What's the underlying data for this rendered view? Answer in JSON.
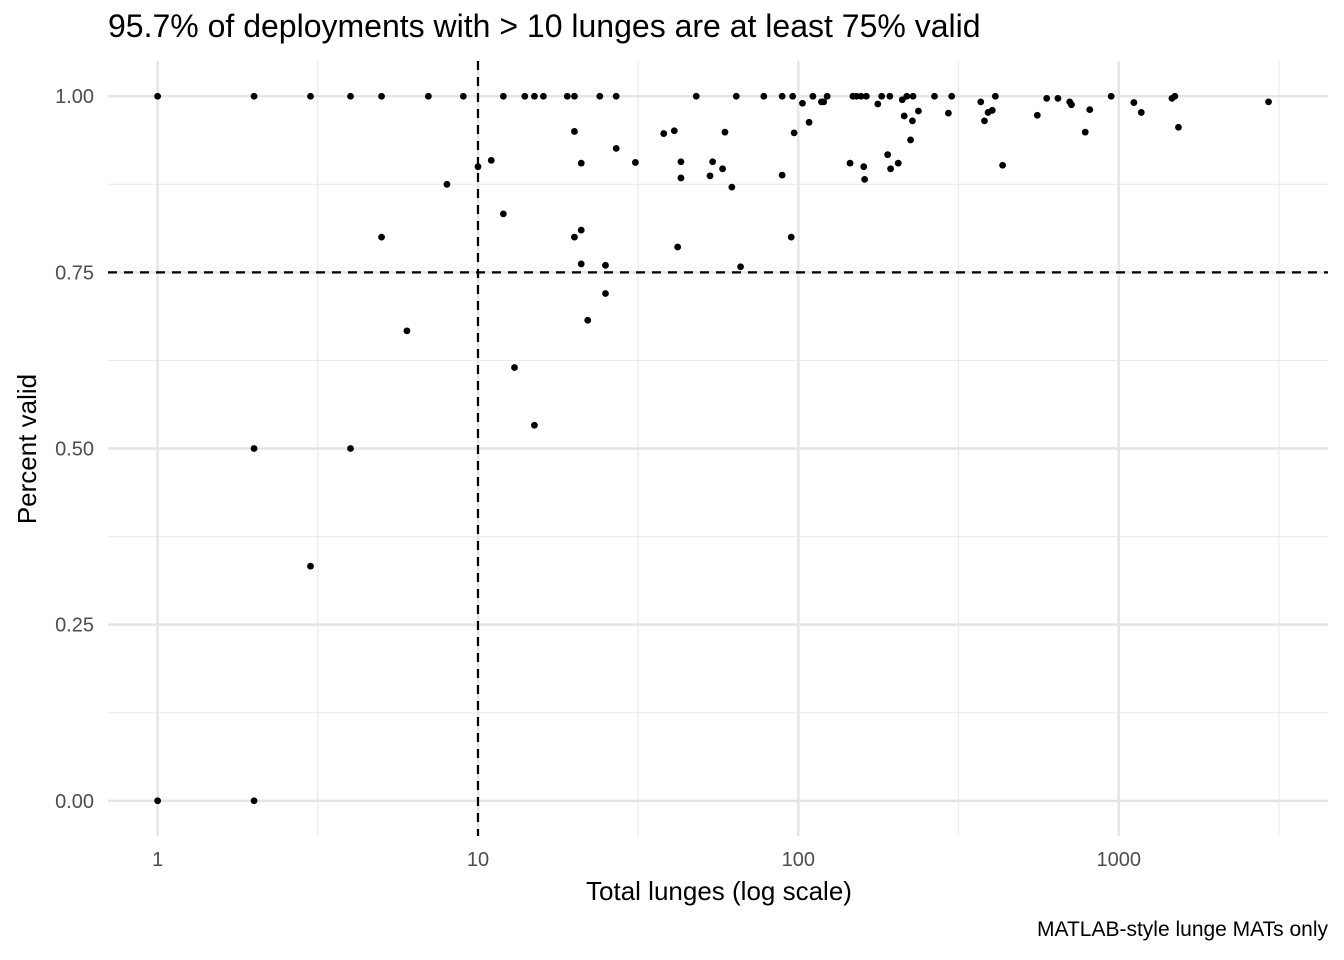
{
  "chart_data": {
    "type": "scatter",
    "title": "95.7% of deployments with > 10 lunges are at least 75% valid",
    "caption": "MATLAB-style lunge MATs only",
    "xlabel": "Total lunges (log scale)",
    "ylabel": "Percent valid",
    "x_scale": "log10",
    "xlim": [
      0.7,
      4500
    ],
    "ylim": [
      -0.05,
      1.05
    ],
    "x_ticks": [
      1,
      10,
      100,
      1000
    ],
    "x_tick_labels": [
      "1",
      "10",
      "100",
      "1000"
    ],
    "y_ticks": [
      0,
      0.25,
      0.5,
      0.75,
      1
    ],
    "y_tick_labels": [
      "0.00",
      "0.25",
      "0.50",
      "0.75",
      "1.00"
    ],
    "grid": true,
    "reference_lines": [
      {
        "orientation": "vertical",
        "value": 10,
        "style": "dashed"
      },
      {
        "orientation": "horizontal",
        "value": 0.75,
        "style": "dashed"
      }
    ],
    "points": [
      {
        "x": 1,
        "y": 1.0
      },
      {
        "x": 1,
        "y": 0.0
      },
      {
        "x": 2,
        "y": 1.0
      },
      {
        "x": 2,
        "y": 0.5
      },
      {
        "x": 2,
        "y": 0.0
      },
      {
        "x": 3,
        "y": 1.0
      },
      {
        "x": 3,
        "y": 0.333
      },
      {
        "x": 4,
        "y": 1.0
      },
      {
        "x": 4,
        "y": 0.5
      },
      {
        "x": 5,
        "y": 1.0
      },
      {
        "x": 5,
        "y": 0.8
      },
      {
        "x": 6,
        "y": 0.667
      },
      {
        "x": 7,
        "y": 1.0
      },
      {
        "x": 8,
        "y": 0.875
      },
      {
        "x": 9,
        "y": 1.0
      },
      {
        "x": 10,
        "y": 0.9
      },
      {
        "x": 11,
        "y": 0.909
      },
      {
        "x": 12,
        "y": 1.0
      },
      {
        "x": 12,
        "y": 0.833
      },
      {
        "x": 13,
        "y": 0.615
      },
      {
        "x": 14,
        "y": 1.0
      },
      {
        "x": 15,
        "y": 1.0
      },
      {
        "x": 15,
        "y": 0.533
      },
      {
        "x": 16,
        "y": 1.0
      },
      {
        "x": 19,
        "y": 1.0
      },
      {
        "x": 20,
        "y": 1.0
      },
      {
        "x": 20,
        "y": 0.95
      },
      {
        "x": 20,
        "y": 0.8
      },
      {
        "x": 21,
        "y": 0.905
      },
      {
        "x": 21,
        "y": 0.81
      },
      {
        "x": 21,
        "y": 0.762
      },
      {
        "x": 22,
        "y": 0.682
      },
      {
        "x": 24,
        "y": 1.0
      },
      {
        "x": 25,
        "y": 0.76
      },
      {
        "x": 25,
        "y": 0.72
      },
      {
        "x": 27,
        "y": 1.0
      },
      {
        "x": 27,
        "y": 0.926
      },
      {
        "x": 31,
        "y": 0.906
      },
      {
        "x": 38,
        "y": 0.947
      },
      {
        "x": 41,
        "y": 0.951
      },
      {
        "x": 42,
        "y": 0.786
      },
      {
        "x": 43,
        "y": 0.907
      },
      {
        "x": 43,
        "y": 0.884
      },
      {
        "x": 48,
        "y": 1.0
      },
      {
        "x": 53,
        "y": 0.887
      },
      {
        "x": 54,
        "y": 0.907
      },
      {
        "x": 58,
        "y": 0.897
      },
      {
        "x": 59,
        "y": 0.949
      },
      {
        "x": 62,
        "y": 0.871
      },
      {
        "x": 64,
        "y": 1.0
      },
      {
        "x": 66,
        "y": 0.758
      },
      {
        "x": 78,
        "y": 1.0
      },
      {
        "x": 89,
        "y": 1.0
      },
      {
        "x": 89,
        "y": 0.888
      },
      {
        "x": 95,
        "y": 0.8
      },
      {
        "x": 96,
        "y": 1.0
      },
      {
        "x": 97,
        "y": 0.948
      },
      {
        "x": 103,
        "y": 0.99
      },
      {
        "x": 108,
        "y": 0.963
      },
      {
        "x": 111,
        "y": 1.0
      },
      {
        "x": 118,
        "y": 0.992
      },
      {
        "x": 120,
        "y": 0.992
      },
      {
        "x": 123,
        "y": 1.0
      },
      {
        "x": 145,
        "y": 0.905
      },
      {
        "x": 148,
        "y": 1.0
      },
      {
        "x": 152,
        "y": 1.0
      },
      {
        "x": 157,
        "y": 1.0
      },
      {
        "x": 160,
        "y": 0.9
      },
      {
        "x": 161,
        "y": 0.882
      },
      {
        "x": 163,
        "y": 1.0
      },
      {
        "x": 177,
        "y": 0.989
      },
      {
        "x": 182,
        "y": 1.0
      },
      {
        "x": 190,
        "y": 0.917
      },
      {
        "x": 193,
        "y": 1.0
      },
      {
        "x": 194,
        "y": 0.897
      },
      {
        "x": 205,
        "y": 0.905
      },
      {
        "x": 211,
        "y": 0.995
      },
      {
        "x": 214,
        "y": 0.972
      },
      {
        "x": 218,
        "y": 1.0
      },
      {
        "x": 224,
        "y": 0.938
      },
      {
        "x": 227,
        "y": 0.965
      },
      {
        "x": 228,
        "y": 1.0
      },
      {
        "x": 237,
        "y": 0.979
      },
      {
        "x": 266,
        "y": 1.0
      },
      {
        "x": 294,
        "y": 0.976
      },
      {
        "x": 301,
        "y": 1.0
      },
      {
        "x": 371,
        "y": 0.992
      },
      {
        "x": 381,
        "y": 0.965
      },
      {
        "x": 391,
        "y": 0.977
      },
      {
        "x": 403,
        "y": 0.98
      },
      {
        "x": 412,
        "y": 1.0
      },
      {
        "x": 434,
        "y": 0.902
      },
      {
        "x": 557,
        "y": 0.973
      },
      {
        "x": 596,
        "y": 0.997
      },
      {
        "x": 646,
        "y": 0.997
      },
      {
        "x": 703,
        "y": 0.992
      },
      {
        "x": 712,
        "y": 0.988
      },
      {
        "x": 786,
        "y": 0.949
      },
      {
        "x": 812,
        "y": 0.981
      },
      {
        "x": 947,
        "y": 1.0
      },
      {
        "x": 1115,
        "y": 0.991
      },
      {
        "x": 1176,
        "y": 0.977
      },
      {
        "x": 1466,
        "y": 0.997
      },
      {
        "x": 1497,
        "y": 1.0
      },
      {
        "x": 1536,
        "y": 0.956
      },
      {
        "x": 2935,
        "y": 0.992
      }
    ]
  }
}
